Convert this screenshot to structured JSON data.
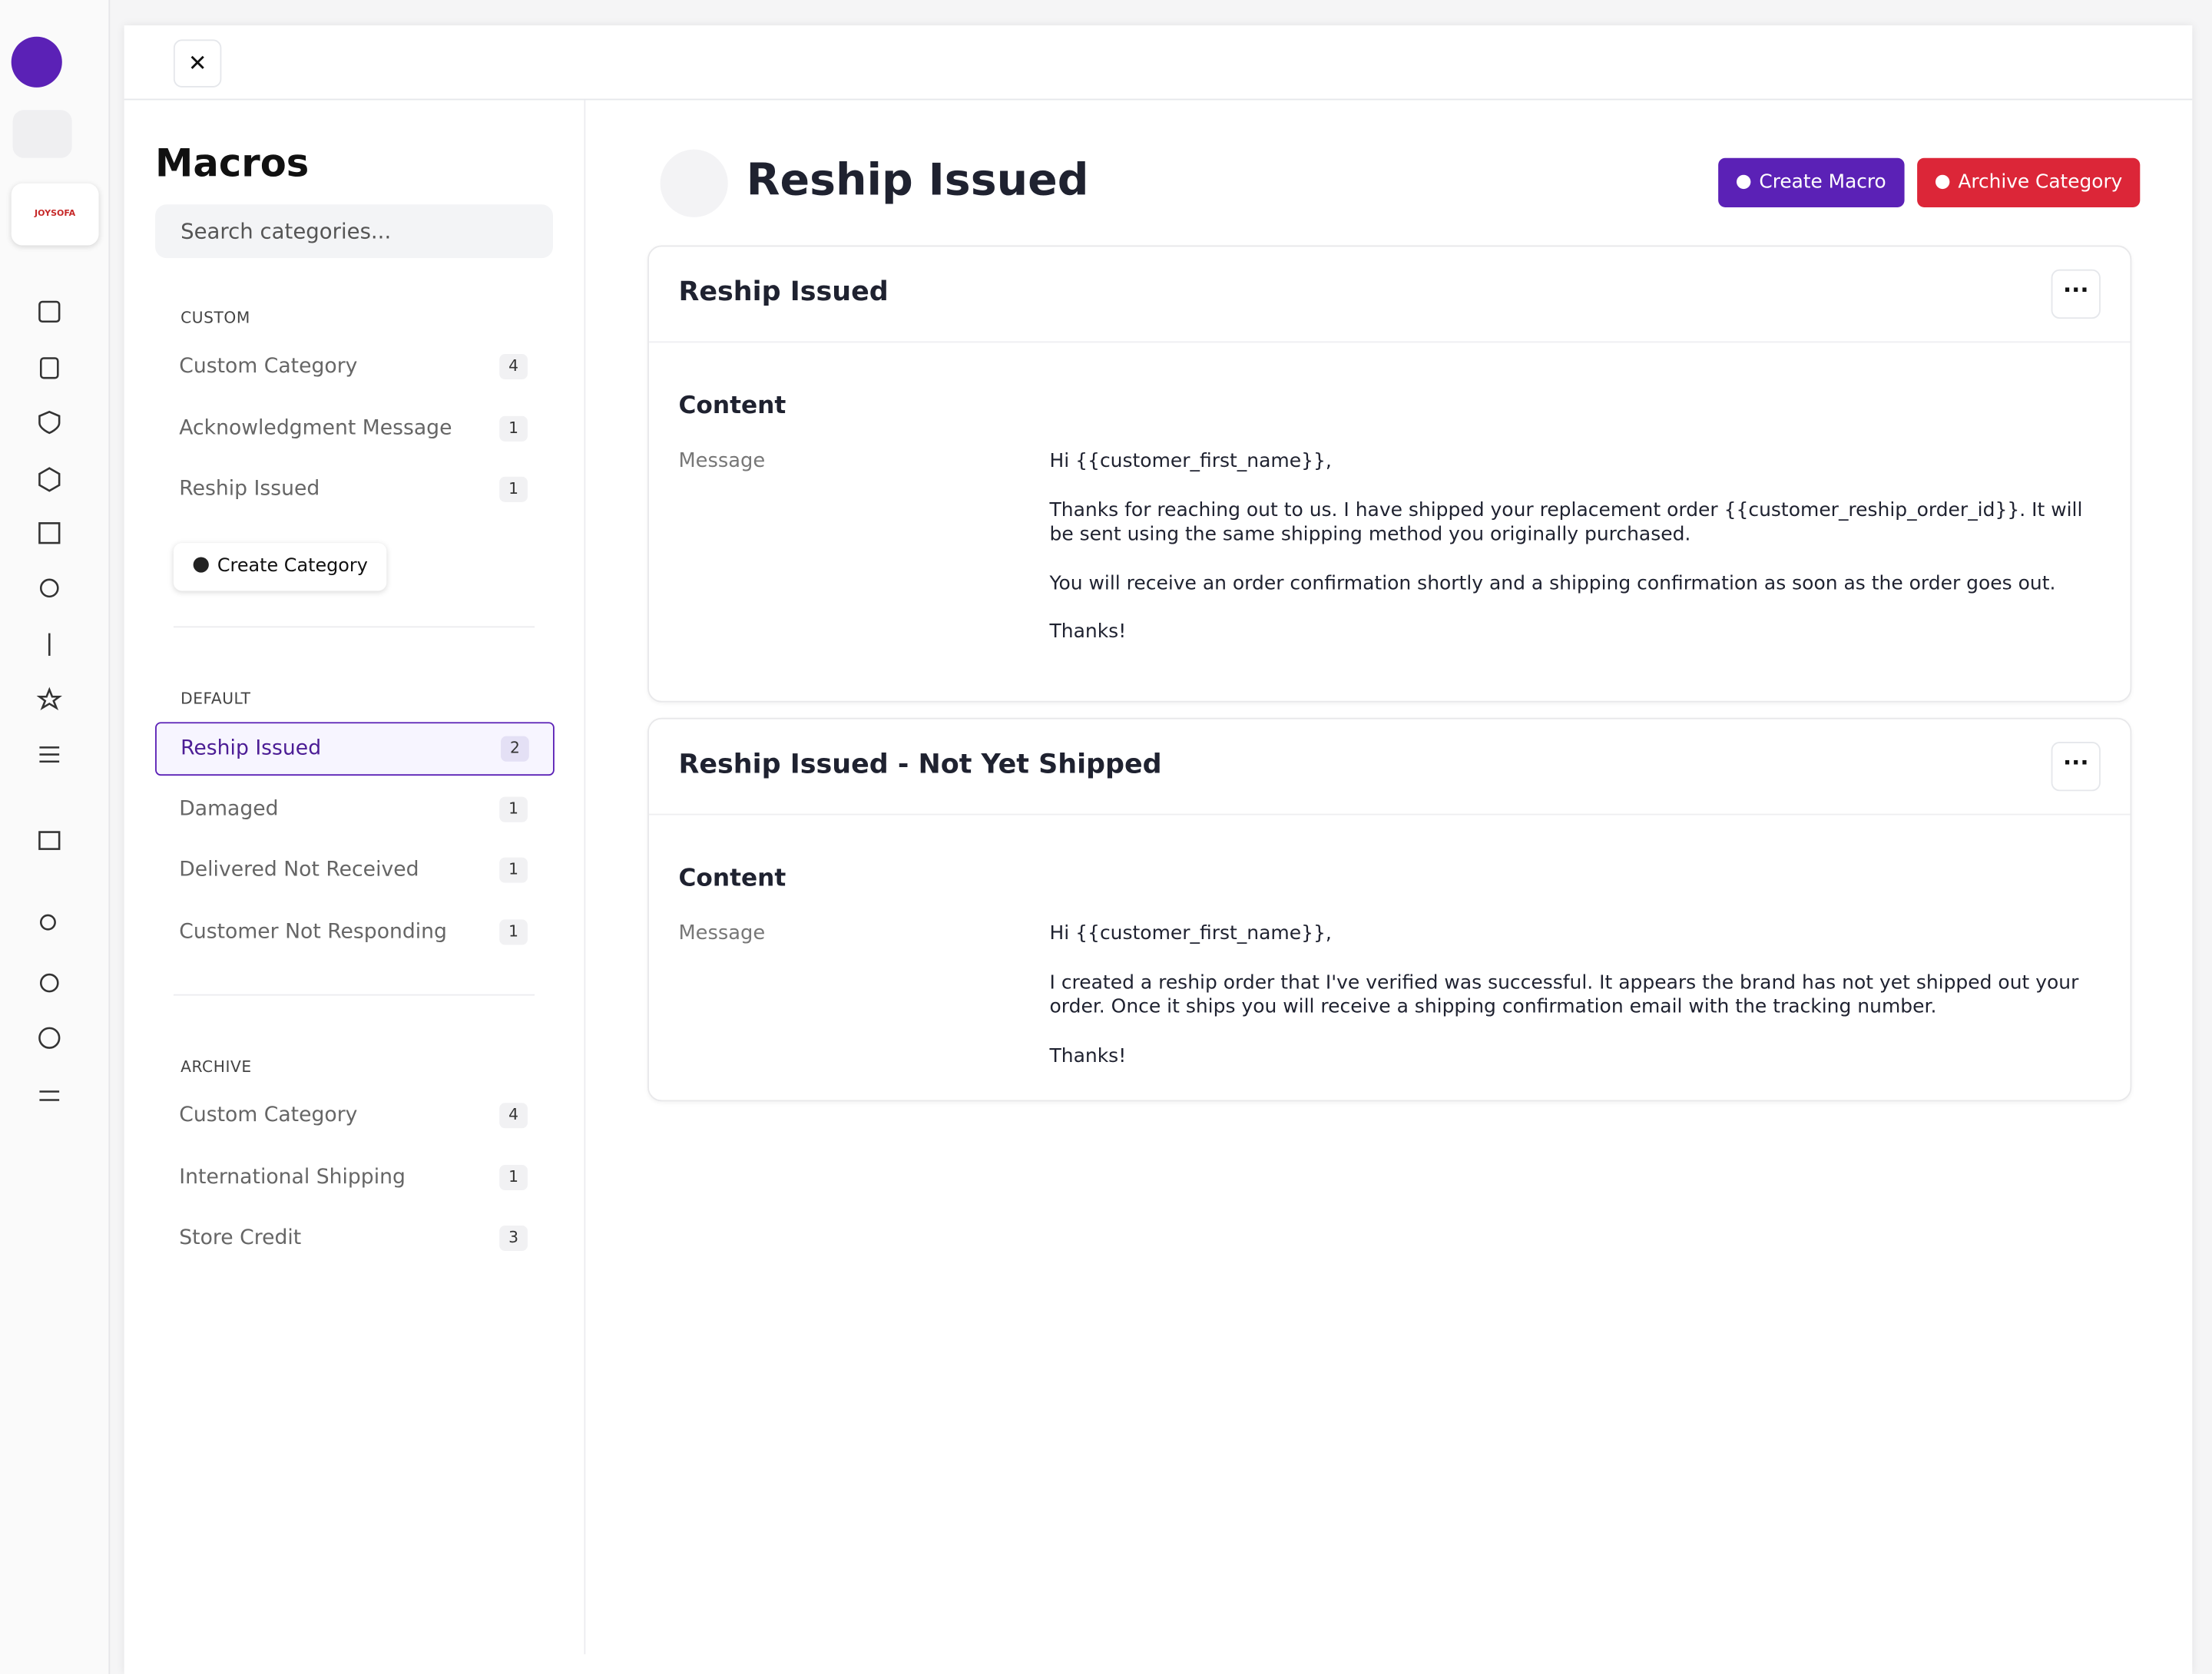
{
  "brand": "JOYSOFA",
  "panel": {
    "title": "Macros",
    "search_placeholder": "Search categories...",
    "create_category": "Create Category",
    "sections": [
      {
        "heading": "CUSTOM",
        "items": [
          {
            "label": "Custom Category",
            "count": "4"
          },
          {
            "label": "Acknowledgment Message",
            "count": "1"
          },
          {
            "label": "Reship Issued",
            "count": "1"
          }
        ]
      },
      {
        "heading": "DEFAULT",
        "items": [
          {
            "label": "Reship Issued",
            "count": "2"
          },
          {
            "label": "Damaged",
            "count": "1"
          },
          {
            "label": "Delivered Not Received",
            "count": "1"
          },
          {
            "label": "Customer Not Responding",
            "count": "1"
          }
        ]
      },
      {
        "heading": "ARCHIVE",
        "items": [
          {
            "label": "Custom Category",
            "count": "4"
          },
          {
            "label": "International Shipping",
            "count": "1"
          },
          {
            "label": "Store Credit",
            "count": "3"
          }
        ]
      }
    ]
  },
  "main": {
    "title": "Reship Issued",
    "create_macro": "Create Macro",
    "archive_category": "Archive Category",
    "macros": [
      {
        "title": "Reship Issued",
        "section": "Content",
        "field": "Message",
        "paragraphs": [
          "Hi {{customer_first_name}},",
          "Thanks for reaching out to us. I have shipped your replacement order {{customer_reship_order_id}}. It will be sent using the same shipping method you originally purchased.",
          "You will receive an order confirmation shortly and a shipping confirmation as soon as the order goes out.",
          "Thanks!"
        ]
      },
      {
        "title": "Reship Issued - Not Yet Shipped",
        "section": "Content",
        "field": "Message",
        "paragraphs": [
          "Hi {{customer_first_name}},",
          "I created a reship order that I've verified was successful. It appears the brand has not yet shipped out your order. Once it ships you will receive a shipping confirmation email with the tracking number.",
          "Thanks!"
        ]
      }
    ]
  }
}
